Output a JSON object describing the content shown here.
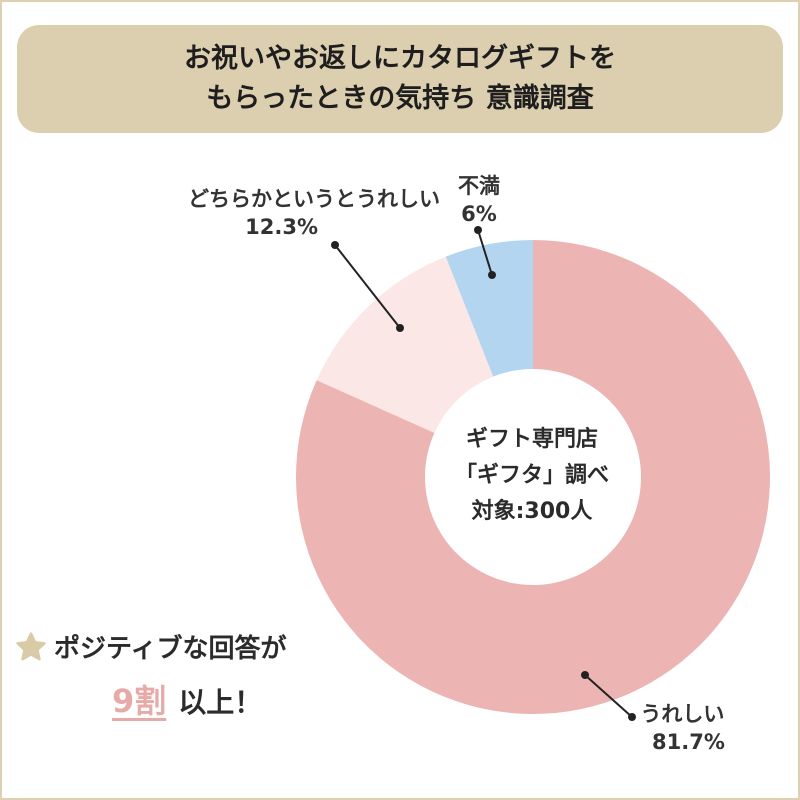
{
  "title": {
    "line1": "お祝いやお返しにカタログギフトを",
    "line2": "もらったときの気持ち 意識調査"
  },
  "center": {
    "line1": "ギフト専門店",
    "line2": "「ギフタ」調べ",
    "line3": "対象:300人"
  },
  "callout": {
    "line1": "ポジティブな回答が",
    "highlight": "9割",
    "line2_rest": "以上！",
    "icon": "star-icon",
    "highlight_color": "#e8aaa8",
    "star_color": "#d9cba8"
  },
  "chart_data": {
    "type": "pie",
    "donut": true,
    "slices": [
      {
        "label": "うれしい",
        "value": 81.7,
        "display": "81.7%",
        "color": "#ecb5b3"
      },
      {
        "label": "どちらかというとうれしい",
        "value": 12.3,
        "display": "12.3%",
        "color": "#fbe7e6"
      },
      {
        "label": "不満",
        "value": 6,
        "display": "6%",
        "color": "#b3d5ef"
      }
    ]
  }
}
